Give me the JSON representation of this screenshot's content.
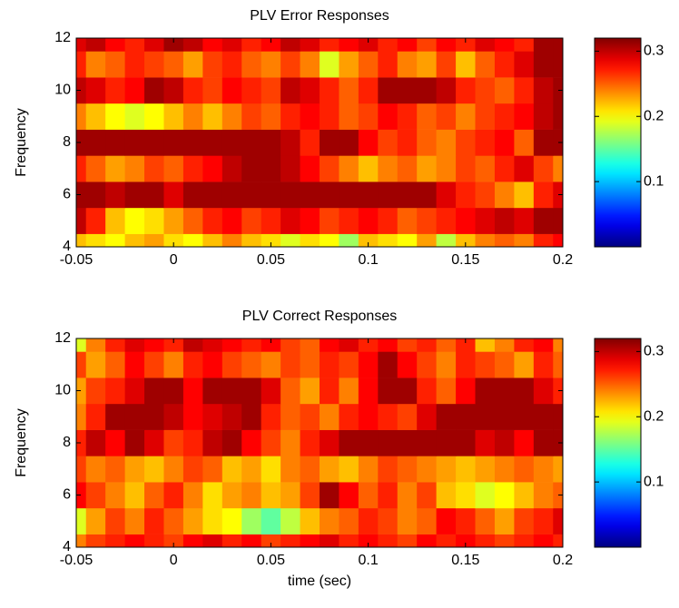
{
  "chart_data": [
    {
      "type": "heatmap",
      "title": "PLV Error Responses",
      "ylabel": "Frequency",
      "colormap": "jet",
      "x": [
        -0.05,
        -0.04,
        -0.03,
        -0.02,
        -0.01,
        0,
        0.01,
        0.02,
        0.03,
        0.04,
        0.05,
        0.06,
        0.07,
        0.08,
        0.09,
        0.1,
        0.11,
        0.12,
        0.13,
        0.14,
        0.15,
        0.16,
        0.17,
        0.18,
        0.19,
        0.2
      ],
      "y": [
        4,
        5,
        6,
        7,
        8,
        9,
        10,
        11,
        12
      ],
      "z": [
        [
          0.22,
          0.21,
          0.2,
          0.22,
          0.23,
          0.21,
          0.2,
          0.22,
          0.24,
          0.22,
          0.21,
          0.19,
          0.21,
          0.2,
          0.17,
          0.22,
          0.21,
          0.2,
          0.23,
          0.18,
          0.22,
          0.24,
          0.25,
          0.24,
          0.27,
          0.28
        ],
        [
          0.3,
          0.27,
          0.22,
          0.2,
          0.21,
          0.23,
          0.25,
          0.27,
          0.28,
          0.26,
          0.27,
          0.29,
          0.28,
          0.26,
          0.27,
          0.28,
          0.27,
          0.25,
          0.26,
          0.27,
          0.28,
          0.29,
          0.3,
          0.29,
          0.31,
          0.31
        ],
        [
          0.31,
          0.31,
          0.3,
          0.31,
          0.31,
          0.29,
          0.31,
          0.31,
          0.31,
          0.31,
          0.31,
          0.31,
          0.31,
          0.31,
          0.31,
          0.31,
          0.31,
          0.31,
          0.31,
          0.29,
          0.27,
          0.26,
          0.24,
          0.22,
          0.27,
          0.29
        ],
        [
          0.27,
          0.25,
          0.23,
          0.24,
          0.26,
          0.25,
          0.27,
          0.28,
          0.3,
          0.31,
          0.31,
          0.3,
          0.28,
          0.26,
          0.24,
          0.22,
          0.24,
          0.25,
          0.23,
          0.24,
          0.26,
          0.25,
          0.27,
          0.29,
          0.26,
          0.24
        ],
        [
          0.31,
          0.31,
          0.31,
          0.31,
          0.31,
          0.31,
          0.31,
          0.31,
          0.31,
          0.31,
          0.31,
          0.3,
          0.27,
          0.31,
          0.31,
          0.28,
          0.26,
          0.27,
          0.25,
          0.24,
          0.26,
          0.27,
          0.28,
          0.25,
          0.31,
          0.31
        ],
        [
          0.24,
          0.22,
          0.2,
          0.19,
          0.2,
          0.22,
          0.24,
          0.22,
          0.24,
          0.26,
          0.25,
          0.27,
          0.28,
          0.27,
          0.25,
          0.26,
          0.28,
          0.27,
          0.25,
          0.26,
          0.24,
          0.26,
          0.27,
          0.28,
          0.3,
          0.31
        ],
        [
          0.3,
          0.29,
          0.27,
          0.28,
          0.31,
          0.3,
          0.27,
          0.26,
          0.28,
          0.27,
          0.26,
          0.3,
          0.29,
          0.27,
          0.25,
          0.27,
          0.31,
          0.31,
          0.31,
          0.3,
          0.27,
          0.26,
          0.25,
          0.27,
          0.3,
          0.31
        ],
        [
          0.27,
          0.24,
          0.25,
          0.27,
          0.26,
          0.25,
          0.23,
          0.26,
          0.27,
          0.25,
          0.24,
          0.26,
          0.24,
          0.19,
          0.23,
          0.25,
          0.27,
          0.24,
          0.23,
          0.26,
          0.22,
          0.25,
          0.27,
          0.29,
          0.31,
          0.31
        ],
        [
          0.29,
          0.3,
          0.28,
          0.27,
          0.29,
          0.31,
          0.3,
          0.28,
          0.29,
          0.27,
          0.28,
          0.3,
          0.29,
          0.27,
          0.28,
          0.29,
          0.27,
          0.28,
          0.26,
          0.28,
          0.27,
          0.29,
          0.28,
          0.27,
          0.31,
          0.31
        ]
      ],
      "xlim": [
        -0.05,
        0.2
      ],
      "xticks": [
        -0.05,
        0,
        0.05,
        0.1,
        0.15,
        0.2
      ],
      "ylim": [
        4,
        12
      ],
      "yticks": [
        4,
        6,
        8,
        10,
        12
      ],
      "clim": [
        0,
        0.32
      ],
      "cticks": [
        0.1,
        0.2,
        0.3
      ]
    },
    {
      "type": "heatmap",
      "title": "PLV Correct Responses",
      "ylabel": "Frequency",
      "xlabel": "time (sec)",
      "colormap": "jet",
      "x": [
        -0.05,
        -0.04,
        -0.03,
        -0.02,
        -0.01,
        0,
        0.01,
        0.02,
        0.03,
        0.04,
        0.05,
        0.06,
        0.07,
        0.08,
        0.09,
        0.1,
        0.11,
        0.12,
        0.13,
        0.14,
        0.15,
        0.16,
        0.17,
        0.18,
        0.19,
        0.2
      ],
      "y": [
        4,
        5,
        6,
        7,
        8,
        9,
        10,
        11,
        12
      ],
      "z": [
        [
          0.24,
          0.26,
          0.27,
          0.28,
          0.27,
          0.26,
          0.28,
          0.29,
          0.27,
          0.28,
          0.26,
          0.27,
          0.28,
          0.29,
          0.27,
          0.28,
          0.27,
          0.26,
          0.28,
          0.27,
          0.28,
          0.27,
          0.26,
          0.27,
          0.28,
          0.27
        ],
        [
          0.19,
          0.23,
          0.26,
          0.24,
          0.27,
          0.25,
          0.23,
          0.21,
          0.2,
          0.17,
          0.15,
          0.18,
          0.22,
          0.24,
          0.25,
          0.27,
          0.26,
          0.24,
          0.25,
          0.28,
          0.27,
          0.25,
          0.23,
          0.26,
          0.27,
          0.29
        ],
        [
          0.28,
          0.26,
          0.24,
          0.22,
          0.25,
          0.27,
          0.24,
          0.21,
          0.23,
          0.24,
          0.22,
          0.23,
          0.26,
          0.31,
          0.28,
          0.25,
          0.27,
          0.24,
          0.26,
          0.22,
          0.21,
          0.19,
          0.2,
          0.22,
          0.24,
          0.25
        ],
        [
          0.26,
          0.24,
          0.25,
          0.23,
          0.22,
          0.24,
          0.26,
          0.25,
          0.22,
          0.23,
          0.21,
          0.24,
          0.25,
          0.23,
          0.22,
          0.24,
          0.26,
          0.25,
          0.24,
          0.23,
          0.22,
          0.23,
          0.24,
          0.25,
          0.24,
          0.23
        ],
        [
          0.27,
          0.3,
          0.28,
          0.31,
          0.29,
          0.26,
          0.27,
          0.3,
          0.31,
          0.28,
          0.26,
          0.24,
          0.27,
          0.29,
          0.31,
          0.31,
          0.31,
          0.31,
          0.31,
          0.31,
          0.31,
          0.29,
          0.3,
          0.28,
          0.31,
          0.31
        ],
        [
          0.24,
          0.27,
          0.31,
          0.31,
          0.31,
          0.3,
          0.28,
          0.29,
          0.3,
          0.31,
          0.27,
          0.25,
          0.26,
          0.24,
          0.27,
          0.28,
          0.27,
          0.26,
          0.29,
          0.31,
          0.31,
          0.31,
          0.31,
          0.31,
          0.31,
          0.31
        ],
        [
          0.23,
          0.26,
          0.27,
          0.29,
          0.31,
          0.31,
          0.28,
          0.31,
          0.31,
          0.31,
          0.29,
          0.25,
          0.23,
          0.27,
          0.24,
          0.28,
          0.31,
          0.31,
          0.27,
          0.25,
          0.28,
          0.31,
          0.31,
          0.31,
          0.29,
          0.27
        ],
        [
          0.26,
          0.23,
          0.25,
          0.28,
          0.26,
          0.24,
          0.27,
          0.28,
          0.26,
          0.25,
          0.24,
          0.26,
          0.25,
          0.27,
          0.26,
          0.28,
          0.31,
          0.28,
          0.26,
          0.24,
          0.27,
          0.26,
          0.25,
          0.23,
          0.27,
          0.25
        ],
        [
          0.19,
          0.24,
          0.27,
          0.29,
          0.28,
          0.27,
          0.3,
          0.29,
          0.28,
          0.27,
          0.28,
          0.26,
          0.25,
          0.28,
          0.29,
          0.27,
          0.28,
          0.26,
          0.27,
          0.25,
          0.27,
          0.22,
          0.24,
          0.27,
          0.28,
          0.24
        ]
      ],
      "xlim": [
        -0.05,
        0.2
      ],
      "xticks": [
        -0.05,
        0,
        0.05,
        0.1,
        0.15,
        0.2
      ],
      "ylim": [
        4,
        12
      ],
      "yticks": [
        4,
        6,
        8,
        10,
        12
      ],
      "clim": [
        0,
        0.32
      ],
      "cticks": [
        0.1,
        0.2,
        0.3
      ]
    }
  ]
}
